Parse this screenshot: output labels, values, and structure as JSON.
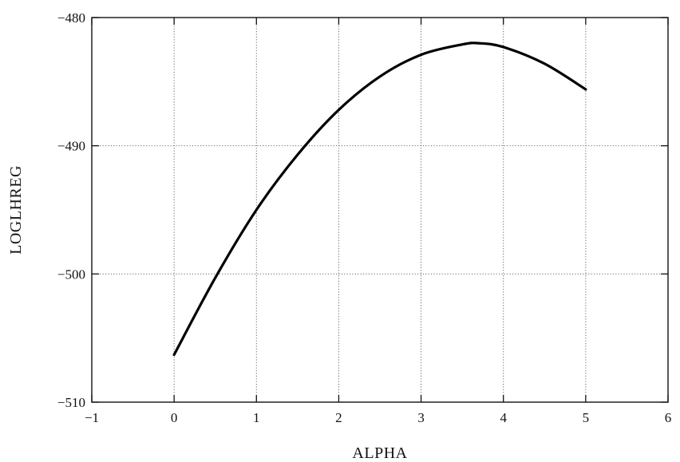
{
  "chart_data": {
    "type": "line",
    "title": "",
    "xlabel": "ALPHA",
    "ylabel": "LOGLHREG",
    "xlim": [
      -1,
      6
    ],
    "ylim": [
      -510,
      -480
    ],
    "xticks": [
      -1,
      0,
      1,
      2,
      3,
      4,
      5,
      6
    ],
    "yticks": [
      -510,
      -500,
      -490,
      -480
    ],
    "xtick_labels": [
      "−1",
      "0",
      "1",
      "2",
      "3",
      "4",
      "5",
      "6"
    ],
    "ytick_labels": [
      "−510",
      "−500",
      "−490",
      "−480"
    ],
    "grid": true,
    "line_color": "#000000",
    "series": [
      {
        "x": [
          0.0,
          0.5,
          1.0,
          1.5,
          2.0,
          2.5,
          3.0,
          3.5,
          3.7,
          4.0,
          4.5,
          5.0
        ],
        "values": [
          -506.3,
          -500.3,
          -495.0,
          -490.7,
          -487.2,
          -484.6,
          -482.9,
          -482.1,
          -482.0,
          -482.3,
          -483.6,
          -485.6
        ]
      }
    ]
  }
}
